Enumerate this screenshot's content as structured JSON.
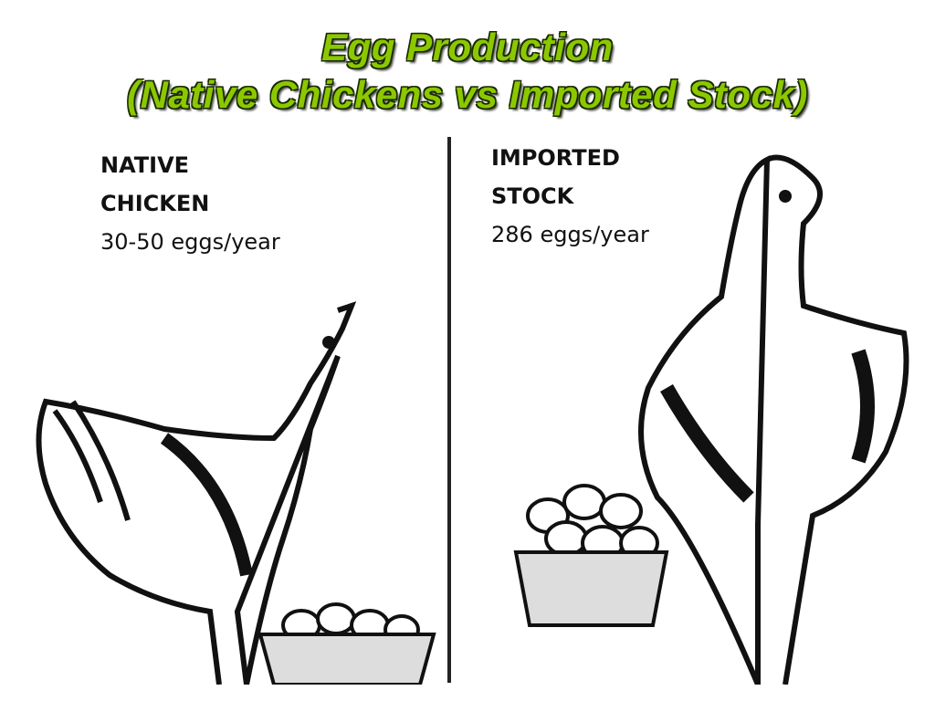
{
  "title": {
    "line1": "Egg Production",
    "line2": "(Native  Chickens vs Imported Stock)",
    "color": "#8cc800"
  },
  "left_panel": {
    "heading_line1": "NATIVE",
    "heading_line2": "CHICKEN",
    "rate": "30-50 eggs/year",
    "illustration": "hen-with-egg-basket"
  },
  "right_panel": {
    "heading_line1": "IMPORTED",
    "heading_line2": "STOCK",
    "rate": "286 eggs/year",
    "illustration": "large-hen-with-full-egg-basket"
  }
}
